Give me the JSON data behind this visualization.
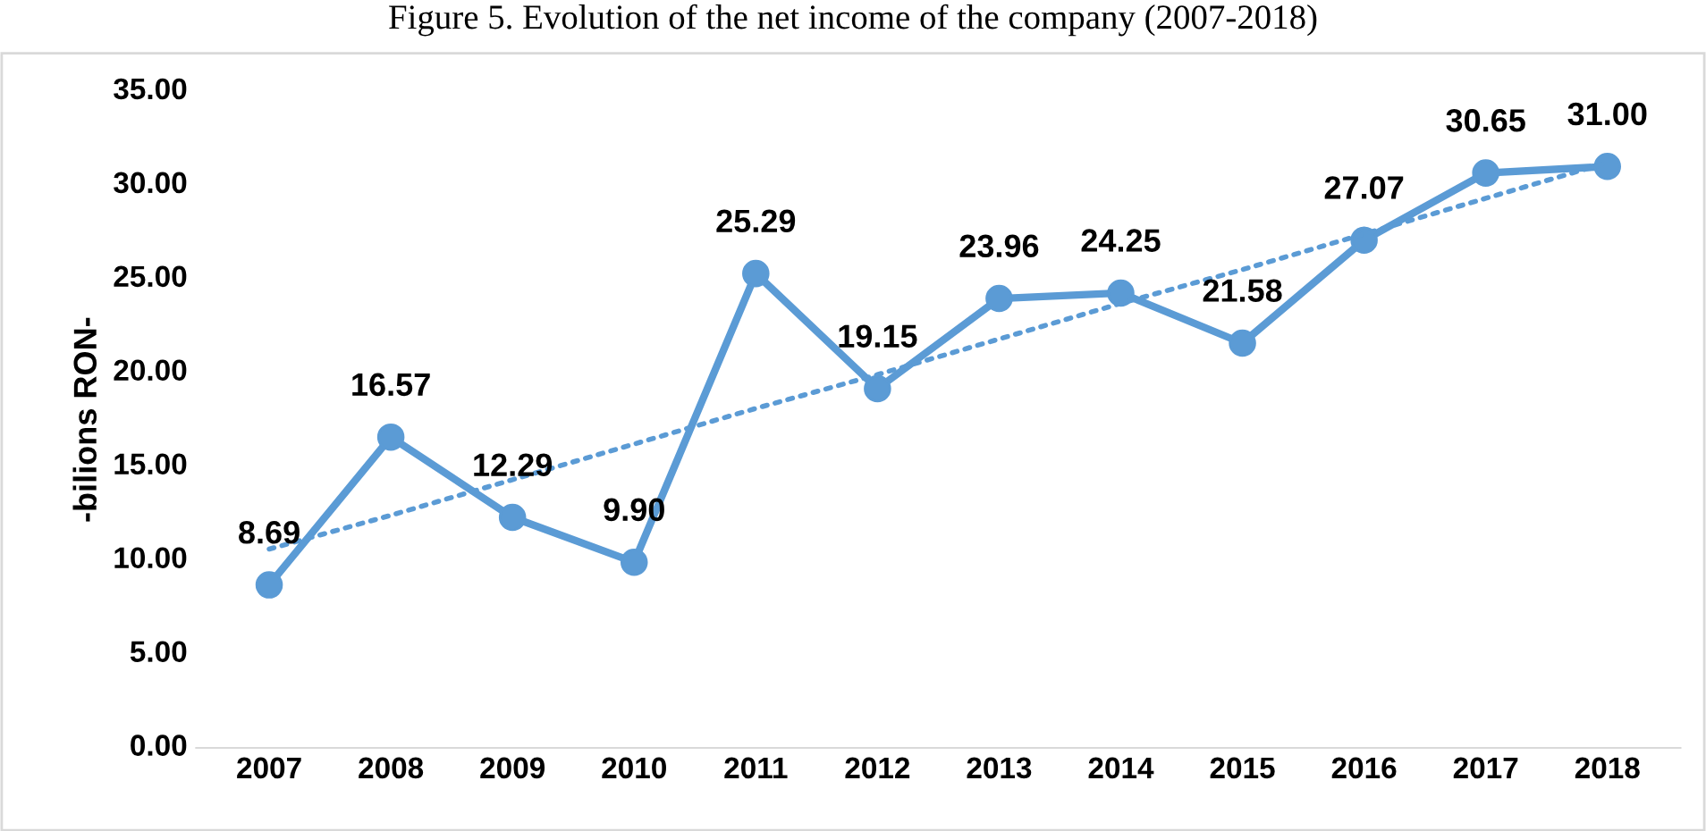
{
  "chart_data": {
    "type": "line",
    "title": "Figure 5. Evolution of the net income of the company (2007-2018)",
    "ylabel": "-bilions RON-",
    "categories": [
      "2007",
      "2008",
      "2009",
      "2010",
      "2011",
      "2012",
      "2013",
      "2014",
      "2015",
      "2016",
      "2017",
      "2018"
    ],
    "series": [
      {
        "color": "#5b9bd5",
        "values": [
          8.69,
          16.57,
          12.29,
          9.9,
          25.29,
          19.15,
          23.96,
          24.25,
          21.58,
          27.07,
          30.65,
          31.0
        ],
        "marker": "circle",
        "line_style": "solid",
        "value_labels": [
          "8.69",
          "16.57",
          "12.29",
          "9.90",
          "25.29",
          "19.15",
          "23.96",
          "24.25",
          "21.58",
          "27.07",
          "30.65",
          "31.00"
        ]
      },
      {
        "type": "line",
        "color": "#5b9bd5",
        "values": [
          10.6,
          12.4,
          14.3,
          16.2,
          18.1,
          19.9,
          21.8,
          23.7,
          25.5,
          27.4,
          29.3,
          31.2
        ],
        "marker": "none",
        "line_style": "dotted"
      }
    ],
    "ylim": [
      0,
      35
    ],
    "yticks": [
      {
        "value": 0,
        "label": "0.00"
      },
      {
        "value": 5,
        "label": "5.00"
      },
      {
        "value": 10,
        "label": "10.00"
      },
      {
        "value": 15,
        "label": "15.00"
      },
      {
        "value": 20,
        "label": "20.00"
      },
      {
        "value": 25,
        "label": "25.00"
      },
      {
        "value": 30,
        "label": "30.00"
      },
      {
        "value": 35,
        "label": "35.00"
      }
    ],
    "grid": false,
    "legend": false
  }
}
